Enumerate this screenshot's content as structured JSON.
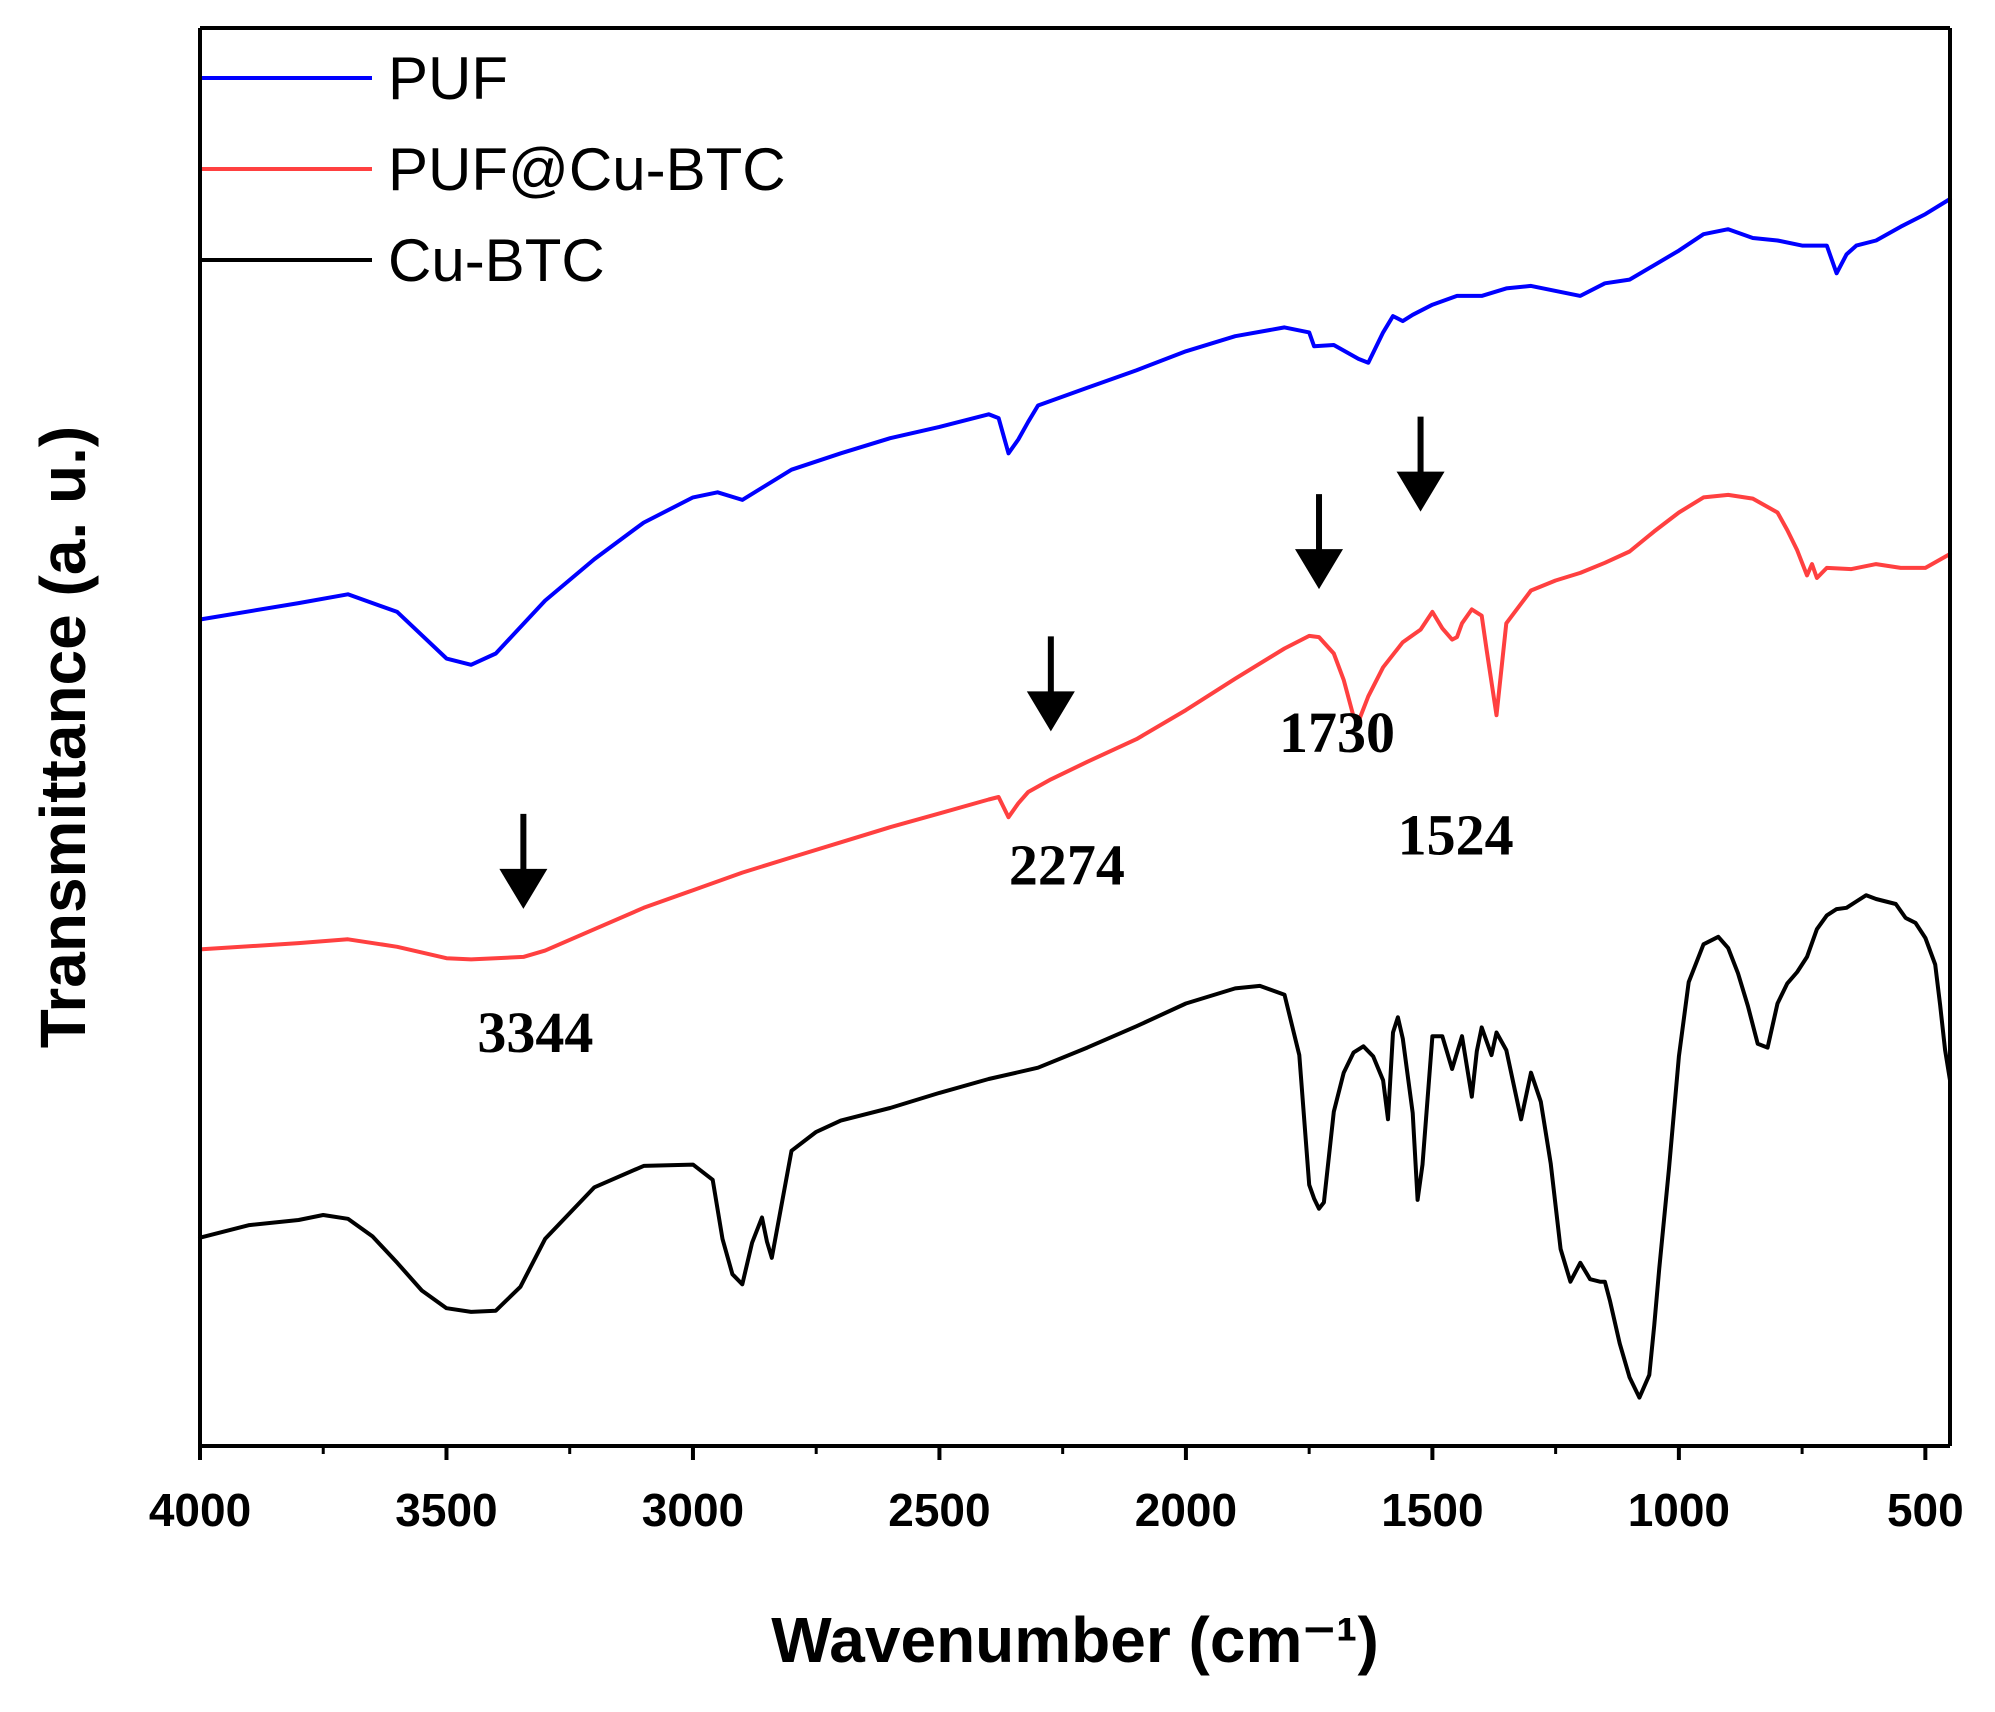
{
  "chart_data": {
    "type": "line",
    "title": "",
    "xlabel": "Wavenumber (cm⁻¹)",
    "ylabel": "Transmittance (a. u.)",
    "xlim": [
      4000,
      450
    ],
    "ylim": [
      0,
      100
    ],
    "x_reversed": true,
    "y_ticks_labeled": false,
    "grid": false,
    "legend_position": "top-left",
    "x_ticks": [
      "4000",
      "3500",
      "3000",
      "2500",
      "2000",
      "1500",
      "1000",
      "500"
    ],
    "series": [
      {
        "name": "PUF",
        "color": "#0000ff",
        "x": [
          4000,
          3800,
          3700,
          3600,
          3500,
          3450,
          3400,
          3300,
          3200,
          3100,
          3000,
          2950,
          2900,
          2800,
          2700,
          2600,
          2500,
          2400,
          2380,
          2360,
          2340,
          2320,
          2300,
          2200,
          2100,
          2000,
          1900,
          1800,
          1750,
          1740,
          1700,
          1650,
          1630,
          1600,
          1580,
          1560,
          1540,
          1500,
          1450,
          1400,
          1350,
          1300,
          1250,
          1200,
          1150,
          1100,
          1000,
          950,
          900,
          850,
          800,
          750,
          700,
          680,
          660,
          640,
          600,
          550,
          500,
          450
        ],
        "y": [
          63.9,
          65.2,
          65.9,
          64.5,
          60.8,
          60.3,
          61.2,
          65.4,
          68.7,
          71.6,
          73.6,
          74.0,
          73.4,
          75.8,
          77.1,
          78.3,
          79.2,
          80.2,
          79.9,
          77.1,
          78.2,
          79.6,
          80.9,
          82.3,
          83.7,
          85.2,
          86.4,
          87.1,
          86.7,
          85.6,
          85.7,
          84.6,
          84.3,
          86.7,
          88.0,
          87.6,
          88.1,
          88.9,
          89.6,
          89.6,
          90.2,
          90.4,
          90.0,
          89.6,
          90.6,
          90.9,
          93.2,
          94.5,
          94.9,
          94.2,
          94.0,
          93.6,
          93.6,
          91.4,
          92.9,
          93.6,
          94.0,
          95.1,
          96.1,
          97.3
        ]
      },
      {
        "name": "PUF@Cu-BTC",
        "color": "#ff4040",
        "x": [
          4000,
          3800,
          3700,
          3600,
          3500,
          3450,
          3400,
          3344,
          3300,
          3200,
          3100,
          3000,
          2900,
          2800,
          2700,
          2600,
          2500,
          2400,
          2380,
          2360,
          2340,
          2320,
          2274,
          2200,
          2100,
          2000,
          1900,
          1800,
          1750,
          1730,
          1700,
          1680,
          1660,
          1650,
          1630,
          1600,
          1560,
          1524,
          1500,
          1480,
          1460,
          1450,
          1440,
          1420,
          1400,
          1390,
          1370,
          1350,
          1300,
          1250,
          1200,
          1150,
          1100,
          1050,
          1000,
          950,
          900,
          850,
          800,
          780,
          760,
          740,
          730,
          720,
          700,
          650,
          600,
          550,
          500,
          450
        ],
        "y": [
          37.7,
          38.2,
          38.5,
          37.9,
          37.0,
          36.9,
          37.0,
          37.1,
          37.6,
          39.3,
          41.0,
          42.4,
          43.8,
          45.0,
          46.2,
          47.4,
          48.5,
          49.6,
          49.8,
          48.2,
          49.3,
          50.2,
          51.2,
          52.6,
          54.4,
          56.7,
          59.2,
          61.6,
          62.6,
          62.5,
          61.2,
          59.1,
          56.2,
          55.8,
          57.8,
          60.1,
          62.1,
          63.1,
          64.5,
          63.2,
          62.3,
          62.5,
          63.6,
          64.7,
          64.2,
          61.5,
          56.3,
          63.6,
          66.2,
          67.0,
          67.6,
          68.4,
          69.3,
          70.9,
          72.4,
          73.6,
          73.8,
          73.5,
          72.4,
          71.0,
          69.4,
          67.4,
          68.3,
          67.2,
          68.0,
          67.9,
          68.3,
          68.0,
          68.0,
          69.1
        ]
      },
      {
        "name": "Cu-BTC",
        "color": "#000000",
        "x": [
          4000,
          3900,
          3800,
          3750,
          3700,
          3650,
          3600,
          3550,
          3500,
          3450,
          3400,
          3350,
          3300,
          3200,
          3100,
          3000,
          2960,
          2940,
          2920,
          2900,
          2880,
          2860,
          2850,
          2840,
          2800,
          2750,
          2700,
          2600,
          2500,
          2400,
          2300,
          2200,
          2100,
          2000,
          1900,
          1850,
          1800,
          1770,
          1750,
          1740,
          1730,
          1720,
          1700,
          1680,
          1660,
          1640,
          1620,
          1600,
          1590,
          1580,
          1570,
          1560,
          1540,
          1530,
          1520,
          1500,
          1480,
          1460,
          1440,
          1420,
          1410,
          1400,
          1380,
          1370,
          1350,
          1320,
          1300,
          1280,
          1260,
          1240,
          1220,
          1200,
          1180,
          1160,
          1150,
          1140,
          1120,
          1100,
          1080,
          1060,
          1050,
          1040,
          1020,
          1000,
          980,
          950,
          920,
          900,
          880,
          860,
          840,
          820,
          800,
          780,
          760,
          740,
          720,
          700,
          680,
          660,
          640,
          620,
          600,
          580,
          560,
          540,
          520,
          500,
          480,
          470,
          460,
          450
        ],
        "y": [
          14.8,
          15.8,
          16.2,
          16.6,
          16.3,
          14.9,
          12.8,
          10.6,
          9.2,
          8.9,
          9.0,
          10.9,
          14.7,
          18.8,
          20.5,
          20.6,
          19.4,
          14.7,
          11.9,
          11.1,
          14.4,
          16.4,
          14.5,
          13.2,
          21.7,
          23.2,
          24.1,
          25.1,
          26.3,
          27.4,
          28.3,
          29.9,
          31.6,
          33.4,
          34.6,
          34.8,
          34.1,
          29.3,
          19.0,
          17.9,
          17.1,
          17.6,
          24.8,
          27.9,
          29.5,
          30.0,
          29.2,
          27.3,
          24.2,
          31.1,
          32.3,
          30.6,
          24.7,
          17.8,
          20.6,
          30.8,
          30.8,
          28.2,
          30.8,
          26.0,
          29.6,
          31.5,
          29.3,
          31.1,
          29.7,
          24.2,
          27.9,
          25.6,
          20.7,
          13.9,
          11.3,
          12.8,
          11.5,
          11.3,
          11.3,
          9.8,
          6.4,
          3.7,
          2.1,
          3.9,
          7.8,
          12.3,
          20.3,
          29.2,
          35.1,
          38.1,
          38.7,
          37.8,
          35.8,
          33.2,
          30.2,
          29.9,
          33.4,
          35.0,
          35.9,
          37.1,
          39.3,
          40.4,
          40.9,
          41.0,
          41.5,
          42.0,
          41.7,
          41.5,
          41.3,
          40.2,
          39.8,
          38.6,
          36.5,
          33.3,
          29.7,
          27.3
        ]
      }
    ],
    "annotations": [
      {
        "text": "3344",
        "arrow_x": 3344,
        "arrow_series": "PUF@Cu-BTC"
      },
      {
        "text": "2274",
        "arrow_x": 2274,
        "arrow_series": "PUF@Cu-BTC"
      },
      {
        "text": "1730",
        "arrow_x": 1730,
        "arrow_series": "PUF@Cu-BTC"
      },
      {
        "text": "1524",
        "arrow_x": 1524,
        "arrow_series": "PUF@Cu-BTC"
      }
    ]
  }
}
